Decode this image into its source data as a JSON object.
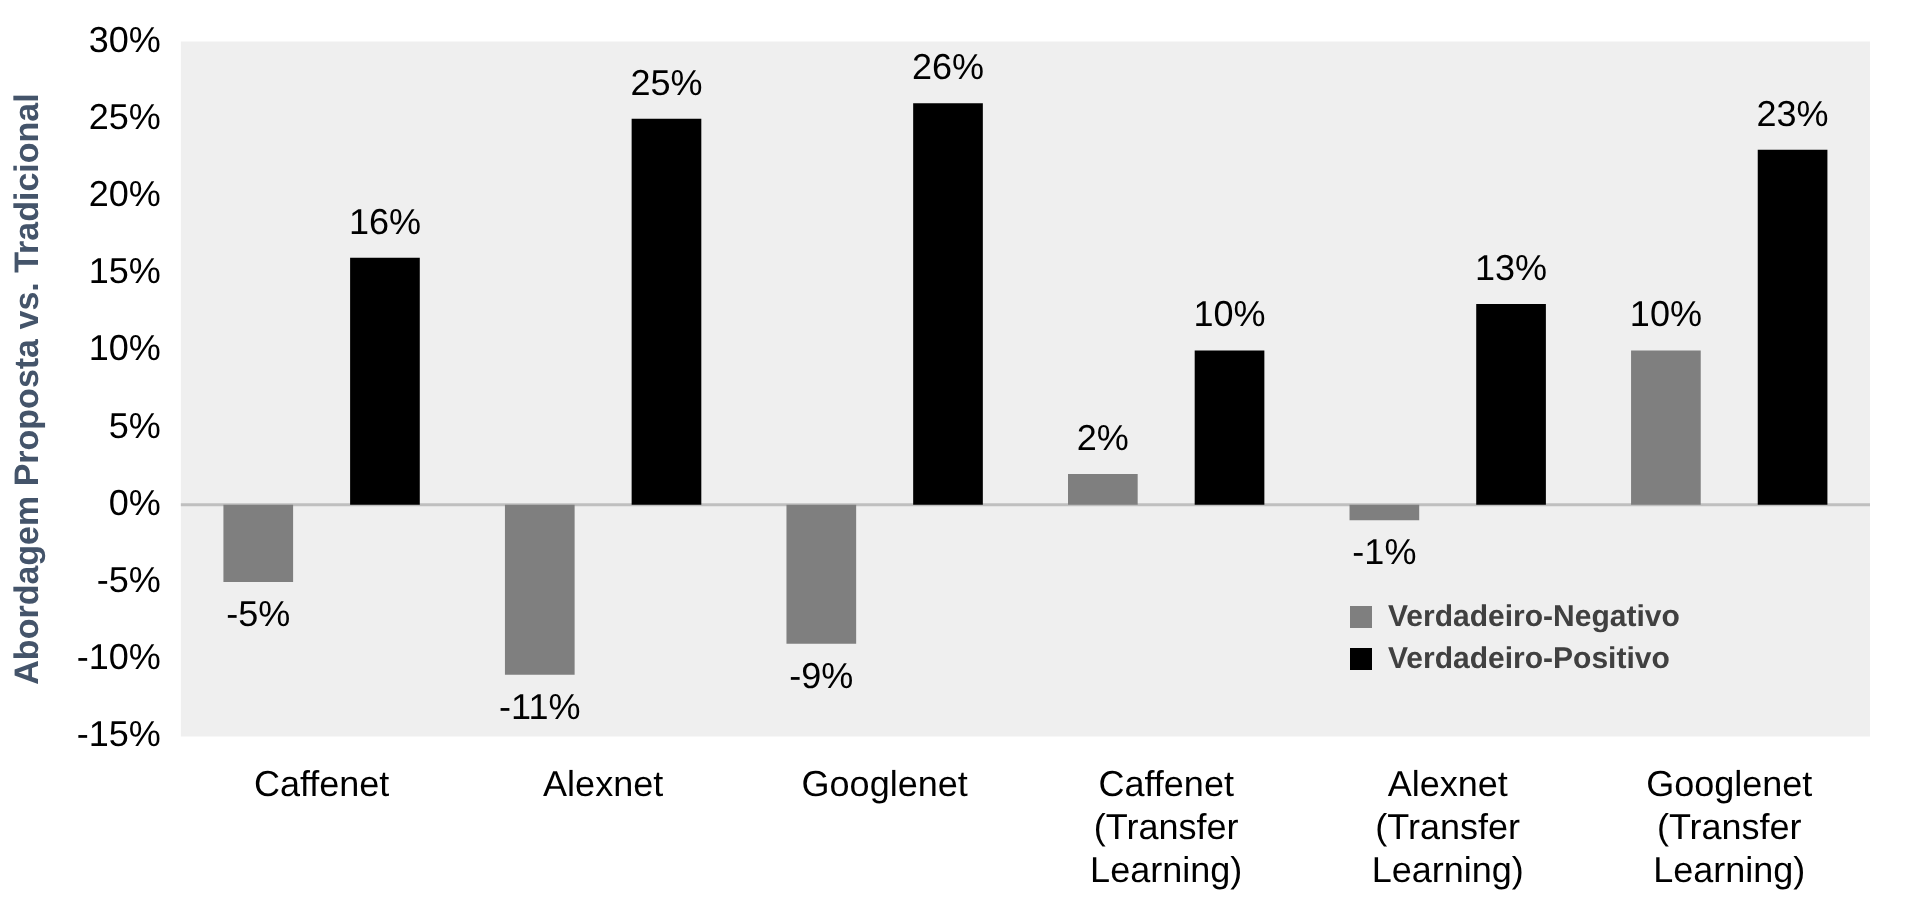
{
  "chart_data": {
    "type": "bar",
    "ylabel": "Abordagem Proposta vs. Tradicional",
    "categories": [
      "Caffenet",
      "Alexnet",
      "Googlenet",
      "Caffenet (Transfer Learning)",
      "Alexnet (Transfer Learning)",
      "Googlenet (Transfer Learning)"
    ],
    "series": [
      {
        "name": "Verdadeiro-Negativo",
        "color": "#7f7f7f",
        "values": [
          -5,
          -11,
          -9,
          2,
          -1,
          10
        ],
        "value_labels": [
          "-5%",
          "-11%",
          "-9%",
          "2%",
          "-1%",
          "10%"
        ]
      },
      {
        "name": "Verdadeiro-Positivo",
        "color": "#000000",
        "values": [
          16,
          25,
          26,
          10,
          13,
          23
        ],
        "value_labels": [
          "16%",
          "25%",
          "26%",
          "10%",
          "13%",
          "23%"
        ]
      }
    ],
    "ylim": [
      -15,
      30
    ],
    "yticks": [
      {
        "value": -15,
        "label": "-15%"
      },
      {
        "value": -10,
        "label": "-10%"
      },
      {
        "value": -5,
        "label": "-5%"
      },
      {
        "value": 0,
        "label": "0%"
      },
      {
        "value": 5,
        "label": "5%"
      },
      {
        "value": 10,
        "label": "10%"
      },
      {
        "value": 15,
        "label": "15%"
      },
      {
        "value": 20,
        "label": "20%"
      },
      {
        "value": 25,
        "label": "25%"
      },
      {
        "value": 30,
        "label": "30%"
      }
    ],
    "ref_lines": [
      {
        "axis": "y",
        "value": 0,
        "color": "#bfbfbf"
      }
    ],
    "legend": "bottom right"
  }
}
